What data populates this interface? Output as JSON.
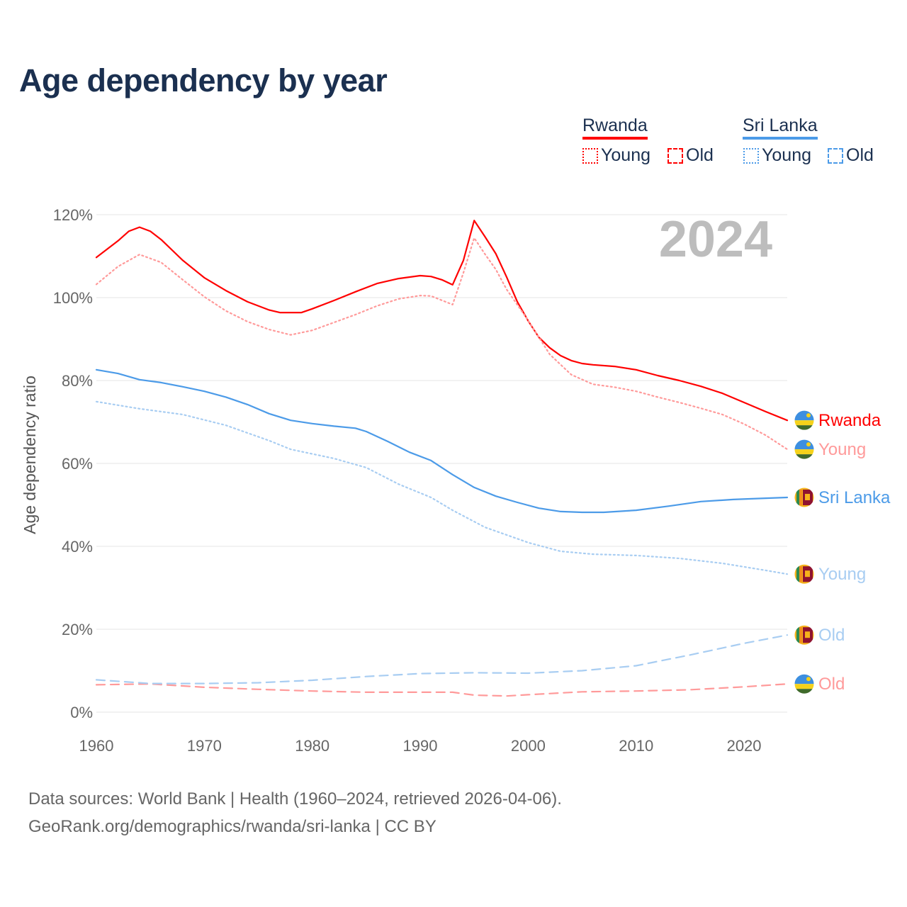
{
  "chart_data": {
    "type": "line",
    "title": "Age dependency by year",
    "ylabel": "Age dependency ratio",
    "xlabel": "",
    "xlim": [
      1960,
      2024
    ],
    "ylim": [
      0,
      120
    ],
    "x_ticks": [
      1960,
      1970,
      1980,
      1990,
      2000,
      2010,
      2020
    ],
    "x_tick_labels": [
      "1960",
      "1970",
      "1980",
      "1990",
      "2000",
      "2010",
      "2020"
    ],
    "y_ticks": [
      0,
      20,
      40,
      60,
      80,
      100,
      120
    ],
    "y_tick_labels": [
      "0%",
      "20%",
      "40%",
      "60%",
      "80%",
      "100%",
      "120%"
    ],
    "grid": true,
    "year_watermark": "2024",
    "legend": {
      "placement": "top-right",
      "groups": [
        {
          "country": "Rwanda",
          "color": "#ff0000",
          "items": [
            "Young",
            "Old"
          ]
        },
        {
          "country": "Sri Lanka",
          "color": "#4c9be8",
          "items": [
            "Young",
            "Old"
          ]
        }
      ]
    },
    "series": [
      {
        "name": "Rwanda",
        "end_label": "Rwanda",
        "country": "Rwanda",
        "style": "solid",
        "color": "#ff0000",
        "x": [
          1960,
          1962,
          1963,
          1964,
          1965,
          1966,
          1968,
          1970,
          1972,
          1974,
          1976,
          1977,
          1979,
          1980,
          1982,
          1984,
          1986,
          1988,
          1990,
          1991,
          1992,
          1993,
          1994,
          1995,
          1996,
          1997,
          1998,
          1999,
          2000,
          2001,
          2002,
          2003,
          2004,
          2005,
          2006,
          2008,
          2010,
          2012,
          2014,
          2016,
          2018,
          2020,
          2022,
          2024
        ],
        "y": [
          109.7,
          113.7,
          116,
          117,
          116,
          114,
          109,
          104.8,
          101.7,
          99,
          97,
          96.4,
          96.4,
          97.3,
          99.3,
          101.4,
          103.4,
          104.6,
          105.3,
          105.1,
          104.3,
          103.1,
          109,
          118.6,
          114.7,
          110.6,
          105,
          99,
          94.4,
          90.4,
          87.9,
          86,
          84.8,
          84.1,
          83.8,
          83.4,
          82.6,
          81.2,
          80,
          78.6,
          76.9,
          74.7,
          72.5,
          70.4
        ]
      },
      {
        "name": "Rwanda Young",
        "end_label": "Young",
        "country": "Rwanda",
        "style": "dotted",
        "color": "#ff9a9a",
        "x": [
          1960,
          1962,
          1964,
          1966,
          1968,
          1970,
          1972,
          1974,
          1976,
          1978,
          1980,
          1982,
          1984,
          1986,
          1988,
          1990,
          1991,
          1993,
          1994,
          1995,
          1996,
          1997,
          1998,
          2000,
          2002,
          2004,
          2006,
          2008,
          2010,
          2012,
          2014,
          2016,
          2018,
          2020,
          2022,
          2024
        ],
        "y": [
          103.2,
          107.5,
          110.4,
          108.5,
          104.3,
          100.2,
          96.8,
          94.2,
          92.3,
          91,
          92.1,
          94,
          95.9,
          98,
          99.7,
          100.5,
          100.4,
          98.3,
          106,
          114.4,
          110.5,
          106.8,
          102,
          94.5,
          86.3,
          81.4,
          79.1,
          78.4,
          77.4,
          76,
          74.7,
          73.3,
          71.8,
          69.5,
          66.8,
          63.4
        ]
      },
      {
        "name": "Rwanda Old",
        "end_label": "Old",
        "country": "Rwanda",
        "style": "dashed",
        "color": "#ff9a9a",
        "x": [
          1960,
          1965,
          1970,
          1975,
          1980,
          1985,
          1990,
          1993,
          1995,
          1998,
          2000,
          2005,
          2010,
          2015,
          2020,
          2024
        ],
        "y": [
          6.6,
          6.8,
          6.0,
          5.5,
          5.1,
          4.8,
          4.8,
          4.8,
          4.1,
          3.9,
          4.2,
          4.9,
          5.1,
          5.4,
          6.1,
          6.8
        ]
      },
      {
        "name": "Sri Lanka",
        "end_label": "Sri Lanka",
        "country": "Sri Lanka",
        "style": "solid",
        "color": "#4c9be8",
        "x": [
          1960,
          1962,
          1964,
          1966,
          1968,
          1970,
          1972,
          1974,
          1976,
          1978,
          1980,
          1982,
          1984,
          1985,
          1987,
          1989,
          1991,
          1993,
          1995,
          1997,
          1999,
          2001,
          2003,
          2005,
          2007,
          2010,
          2013,
          2016,
          2019,
          2022,
          2024
        ],
        "y": [
          82.6,
          81.7,
          80.2,
          79.5,
          78.5,
          77.4,
          76,
          74.2,
          72,
          70.4,
          69.6,
          69,
          68.5,
          67.7,
          65.3,
          62.7,
          60.7,
          57.3,
          54.2,
          52.1,
          50.6,
          49.2,
          48.4,
          48.2,
          48.2,
          48.7,
          49.7,
          50.8,
          51.3,
          51.6,
          51.8
        ]
      },
      {
        "name": "Sri Lanka Young",
        "end_label": "Young",
        "country": "Sri Lanka",
        "style": "dotted",
        "color": "#a8cdf2",
        "x": [
          1960,
          1964,
          1968,
          1972,
          1976,
          1978,
          1982,
          1985,
          1988,
          1991,
          1993,
          1996,
          2000,
          2003,
          2006,
          2010,
          2014,
          2018,
          2022,
          2024
        ],
        "y": [
          74.9,
          73.2,
          71.8,
          69.2,
          65.5,
          63.4,
          61.2,
          59,
          55,
          51.8,
          48.7,
          44.6,
          40.9,
          38.8,
          38.1,
          37.8,
          37.1,
          35.9,
          34.2,
          33.3
        ]
      },
      {
        "name": "Sri Lanka Old",
        "end_label": "Old",
        "country": "Sri Lanka",
        "style": "dashed",
        "color": "#a8cdf2",
        "x": [
          1960,
          1965,
          1970,
          1975,
          1980,
          1985,
          1990,
          1995,
          2000,
          2005,
          2010,
          2015,
          2020,
          2024
        ],
        "y": [
          7.8,
          6.9,
          6.9,
          7.1,
          7.7,
          8.6,
          9.3,
          9.5,
          9.4,
          10.0,
          11.2,
          13.8,
          16.6,
          18.6
        ]
      }
    ]
  },
  "footer": {
    "line1": "Data sources: World Bank | Health (1960–2024, retrieved 2026-04-06).",
    "line2": "GeoRank.org/demographics/rwanda/sri-lanka | CC BY"
  }
}
